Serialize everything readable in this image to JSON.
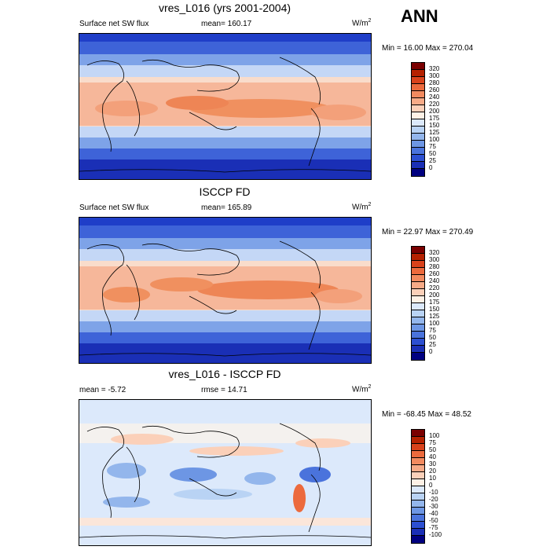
{
  "season": "ANN",
  "panels": [
    {
      "title": "vres_L016 (yrs 2001-2004)",
      "left_label": "Surface net SW flux",
      "center_label": "mean= 160.17",
      "units": "W/m",
      "units_sup": "2",
      "minmax": "Min =  16.00 Max = 270.04",
      "ticks": [
        "320",
        "300",
        "280",
        "260",
        "240",
        "220",
        "200",
        "175",
        "150",
        "125",
        "100",
        "75",
        "50",
        "25",
        "0"
      ],
      "colors": [
        "#7a0000",
        "#b52100",
        "#d9421b",
        "#ec6a3d",
        "#f28a5f",
        "#f6aa87",
        "#fbd0b9",
        "#fef1e6",
        "#dce9fb",
        "#b9d3f4",
        "#93b6ec",
        "#6d96e4",
        "#4a73dc",
        "#2c4fd1",
        "#1a2fb6",
        "#000080"
      ]
    },
    {
      "title": "ISCCP FD",
      "left_label": "Surface net SW flux",
      "center_label": "mean= 165.89",
      "units": "W/m",
      "units_sup": "2",
      "minmax": "Min =  22.97 Max = 270.49",
      "ticks": [
        "320",
        "300",
        "280",
        "260",
        "240",
        "220",
        "200",
        "175",
        "150",
        "125",
        "100",
        "75",
        "50",
        "25",
        "0"
      ],
      "colors": [
        "#7a0000",
        "#b52100",
        "#d9421b",
        "#ec6a3d",
        "#f28a5f",
        "#f6aa87",
        "#fbd0b9",
        "#fef1e6",
        "#dce9fb",
        "#b9d3f4",
        "#93b6ec",
        "#6d96e4",
        "#4a73dc",
        "#2c4fd1",
        "#1a2fb6",
        "#000080"
      ]
    },
    {
      "title": "vres_L016 - ISCCP FD",
      "left_label": "mean =  -5.72",
      "center_label": "rmse =  14.71",
      "units": "W/m",
      "units_sup": "2",
      "minmax": "Min = -68.45 Max =  48.52",
      "ticks": [
        "100",
        "75",
        "50",
        "40",
        "30",
        "20",
        "10",
        "0",
        "-10",
        "-20",
        "-30",
        "-40",
        "-50",
        "-75",
        "-100"
      ],
      "colors": [
        "#7a0000",
        "#b52100",
        "#d9421b",
        "#ec6a3d",
        "#f28a5f",
        "#f6aa87",
        "#fbd0b9",
        "#fef1e6",
        "#dce9fb",
        "#b9d3f4",
        "#93b6ec",
        "#6d96e4",
        "#4a73dc",
        "#2c4fd1",
        "#1a2fb6",
        "#000080"
      ]
    }
  ]
}
